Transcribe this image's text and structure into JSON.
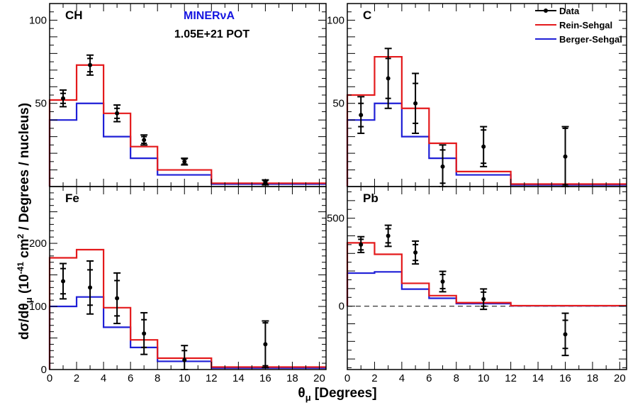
{
  "figure": {
    "experiment_label": "MINERνA",
    "pot_label": "1.05E+21 POT",
    "x_axis_title": "θμ [Degrees]",
    "x_axis_title_main": "θ",
    "x_axis_title_sub": "μ",
    "x_axis_title_unit": " [Degrees]",
    "y_axis_title_main": "dσ/dθ",
    "y_axis_title_sub": "μ",
    "y_axis_title_mid": " (10",
    "y_axis_title_exp": "-41",
    "y_axis_title_unit1": " cm",
    "y_axis_title_exp2": "2",
    "y_axis_title_rest": " / Degrees / nucleus)"
  },
  "legend": {
    "items": [
      {
        "label": "Data",
        "color": "#000000",
        "style": "marker"
      },
      {
        "label": "Rein-Sehgal",
        "color": "#e41a1c",
        "style": "line"
      },
      {
        "label": "Berger-Sehgal",
        "color": "#1f1fd6",
        "style": "line"
      }
    ]
  },
  "colors": {
    "data": "#000000",
    "rein_sehgal": "#e41a1c",
    "berger_sehgal": "#1f1fd6"
  },
  "chart_data": [
    {
      "type": "line",
      "panel": "CH",
      "label": "CH",
      "xlabel": "θμ [Degrees]",
      "ylabel": "dσ/dθμ (10^-41 cm^2 / Degrees / nucleus)",
      "xlim": [
        0,
        20.5
      ],
      "ylim": [
        0,
        110
      ],
      "yticks": [
        50,
        100
      ],
      "bin_edges": [
        0,
        2,
        4,
        6,
        8,
        12,
        20.5
      ],
      "series": [
        {
          "name": "Rein-Sehgal",
          "values": [
            52,
            73,
            44,
            24,
            10,
            2
          ]
        },
        {
          "name": "Berger-Sehgal",
          "values": [
            40,
            50,
            30,
            17,
            7,
            1.5
          ]
        }
      ],
      "data": [
        {
          "x": 1,
          "y": 53,
          "stat": 3,
          "total": 5
        },
        {
          "x": 3,
          "y": 73,
          "stat": 4,
          "total": 6
        },
        {
          "x": 5,
          "y": 44,
          "stat": 3,
          "total": 5
        },
        {
          "x": 7,
          "y": 28,
          "stat": 2,
          "total": 3
        },
        {
          "x": 10,
          "y": 15,
          "stat": 1.5,
          "total": 2
        },
        {
          "x": 16,
          "y": 2.5,
          "stat": 1,
          "total": 1.5
        }
      ]
    },
    {
      "type": "line",
      "panel": "C",
      "label": "C",
      "xlim": [
        0,
        20.5
      ],
      "ylim": [
        0,
        110
      ],
      "yticks": [
        50,
        100
      ],
      "bin_edges": [
        0,
        2,
        4,
        6,
        8,
        12,
        20.5
      ],
      "series": [
        {
          "name": "Rein-Sehgal",
          "values": [
            55,
            78,
            47,
            26,
            9,
            1.5
          ]
        },
        {
          "name": "Berger-Sehgal",
          "values": [
            40,
            50,
            30,
            17,
            7,
            1
          ]
        }
      ],
      "data": [
        {
          "x": 1,
          "y": 43,
          "stat": 7,
          "total": 11
        },
        {
          "x": 3,
          "y": 65,
          "stat": 12,
          "total": 18
        },
        {
          "x": 5,
          "y": 50,
          "stat": 12,
          "total": 18
        },
        {
          "x": 7,
          "y": 12,
          "stat": 10,
          "total": 13
        },
        {
          "x": 10,
          "y": 24,
          "stat": 10,
          "total": 12
        },
        {
          "x": 16,
          "y": 18,
          "stat": 17,
          "total": 18
        }
      ]
    },
    {
      "type": "line",
      "panel": "Fe",
      "label": "Fe",
      "xlim": [
        0,
        20.5
      ],
      "ylim": [
        0,
        290
      ],
      "yticks": [
        0,
        100,
        200
      ],
      "xticks": [
        0,
        2,
        4,
        6,
        8,
        10,
        12,
        14,
        16,
        18,
        20
      ],
      "bin_edges": [
        0,
        2,
        4,
        6,
        8,
        12,
        20.5
      ],
      "series": [
        {
          "name": "Rein-Sehgal",
          "values": [
            177,
            190,
            98,
            47,
            18,
            4
          ]
        },
        {
          "name": "Berger-Sehgal",
          "values": [
            100,
            115,
            67,
            35,
            13,
            2.5
          ]
        }
      ],
      "data": [
        {
          "x": 1,
          "y": 140,
          "stat": 20,
          "total": 28
        },
        {
          "x": 3,
          "y": 130,
          "stat": 28,
          "total": 42
        },
        {
          "x": 5,
          "y": 113,
          "stat": 28,
          "total": 40
        },
        {
          "x": 7,
          "y": 57,
          "stat": 22,
          "total": 33
        },
        {
          "x": 10,
          "y": 15,
          "stat": 15,
          "total": 23
        },
        {
          "x": 16,
          "y": 40,
          "stat": 34,
          "total": 37
        }
      ]
    },
    {
      "type": "line",
      "panel": "Pb",
      "label": "Pb",
      "xlim": [
        0,
        20.5
      ],
      "ylim": [
        -360,
        680
      ],
      "yticks": [
        0,
        500
      ],
      "xticks": [
        0,
        2,
        4,
        6,
        8,
        10,
        12,
        14,
        16,
        18,
        20
      ],
      "bin_edges": [
        0,
        2,
        4,
        6,
        8,
        12,
        20.5
      ],
      "series": [
        {
          "name": "Rein-Sehgal",
          "values": [
            360,
            295,
            130,
            60,
            20,
            3
          ]
        },
        {
          "name": "Berger-Sehgal",
          "values": [
            188,
            195,
            97,
            45,
            15,
            2
          ]
        }
      ],
      "data": [
        {
          "x": 1,
          "y": 350,
          "stat": 30,
          "total": 45
        },
        {
          "x": 3,
          "y": 400,
          "stat": 40,
          "total": 60
        },
        {
          "x": 5,
          "y": 305,
          "stat": 45,
          "total": 65
        },
        {
          "x": 7,
          "y": 140,
          "stat": 40,
          "total": 58
        },
        {
          "x": 10,
          "y": 40,
          "stat": 40,
          "total": 58
        },
        {
          "x": 16,
          "y": -160,
          "stat": 80,
          "total": 120
        }
      ],
      "zero_line": true
    }
  ]
}
